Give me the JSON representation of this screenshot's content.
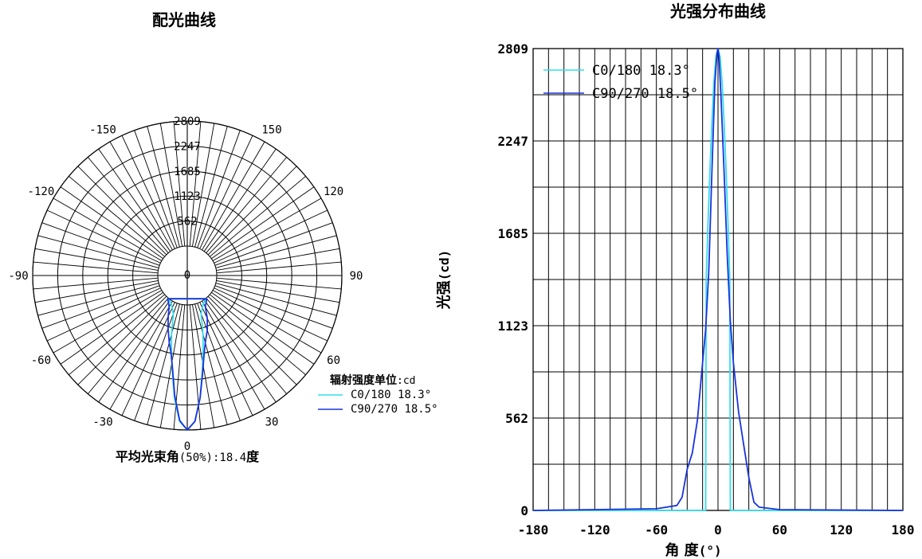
{
  "chart_data": [
    {
      "type": "polar",
      "title": "配光曲线",
      "radial_ticks": [
        "562",
        "1123",
        "1685",
        "2247",
        "2809"
      ],
      "radial_max": 2809,
      "angle_labels": [
        {
          "text": "0",
          "angle": 0
        },
        {
          "text": "30",
          "angle": 30
        },
        {
          "text": "60",
          "angle": 60
        },
        {
          "text": "90",
          "angle": 90
        },
        {
          "text": "120",
          "angle": 120
        },
        {
          "text": "150",
          "angle": 150
        },
        {
          "text": "-30",
          "angle": -30
        },
        {
          "text": "-60",
          "angle": -60
        },
        {
          "text": "-90",
          "angle": -90
        },
        {
          "text": "-120",
          "angle": -120
        },
        {
          "text": "-150",
          "angle": -150
        }
      ],
      "center_label": "0",
      "unit_label": "辐射强度单位",
      "unit_suffix": ":cd",
      "footer_prefix": "平均光束角",
      "footer_mid": "(50%):18.4",
      "footer_suffix": "度",
      "series": [
        {
          "name": "C0/180",
          "beam_angle": "18.3°",
          "color": "#33ddee",
          "angles": [
            -40,
            -30,
            -20,
            -15,
            -12,
            -9,
            -6,
            -3,
            0,
            3,
            6,
            9,
            12,
            15,
            20,
            30,
            40
          ],
          "values": [
            20,
            60,
            250,
            700,
            1050,
            1500,
            2100,
            2620,
            2809,
            2620,
            2100,
            1500,
            1050,
            700,
            250,
            60,
            20
          ]
        },
        {
          "name": "C90/270",
          "beam_angle": "18.5°",
          "color": "#1a33dd",
          "angles": [
            -40,
            -30,
            -25,
            -20,
            -15,
            -12,
            -9,
            -6,
            -3,
            0,
            3,
            6,
            9,
            12,
            15,
            20,
            25,
            30,
            40
          ],
          "values": [
            20,
            150,
            350,
            600,
            900,
            1100,
            1450,
            2050,
            2600,
            2809,
            2620,
            2100,
            1550,
            1150,
            900,
            650,
            400,
            150,
            20
          ]
        }
      ]
    },
    {
      "type": "line",
      "title": "光强分布曲线",
      "xlabel_text": "角 度",
      "xlabel_unit": "(°)",
      "ylabel_text": "光强",
      "ylabel_unit": "(cd)",
      "xlim": [
        -180,
        180
      ],
      "ylim": [
        0,
        2809
      ],
      "x_ticks": [
        -180,
        -120,
        -60,
        0,
        60,
        120,
        180
      ],
      "y_ticks": [
        0,
        562,
        1123,
        1685,
        2247,
        2809
      ],
      "series": [
        {
          "name": "C0/180",
          "beam_angle": "18.3°",
          "color": "#33ddee",
          "x": [
            -180,
            -40,
            -12,
            -11.5,
            -10,
            -8,
            -6,
            -4,
            -2,
            0,
            2,
            4,
            6,
            8,
            10,
            11.5,
            12,
            40,
            180
          ],
          "y": [
            0,
            0,
            0,
            1400,
            1700,
            2050,
            2350,
            2600,
            2760,
            2809,
            2760,
            2600,
            2350,
            2050,
            1700,
            1400,
            0,
            0,
            0
          ]
        },
        {
          "name": "C90/270",
          "beam_angle": "18.5°",
          "color": "#1a33dd",
          "x": [
            -180,
            -60,
            -40,
            -35,
            -30,
            -25,
            -20,
            -15,
            -12,
            -9,
            -6,
            -3,
            -1,
            0,
            1,
            3,
            6,
            9,
            12,
            15,
            20,
            25,
            30,
            35,
            40,
            60,
            180
          ],
          "y": [
            0,
            10,
            30,
            80,
            250,
            350,
            550,
            900,
            1100,
            1450,
            2050,
            2600,
            2780,
            2809,
            2760,
            2500,
            2050,
            1550,
            1150,
            900,
            600,
            400,
            200,
            50,
            20,
            5,
            0
          ]
        }
      ]
    }
  ]
}
